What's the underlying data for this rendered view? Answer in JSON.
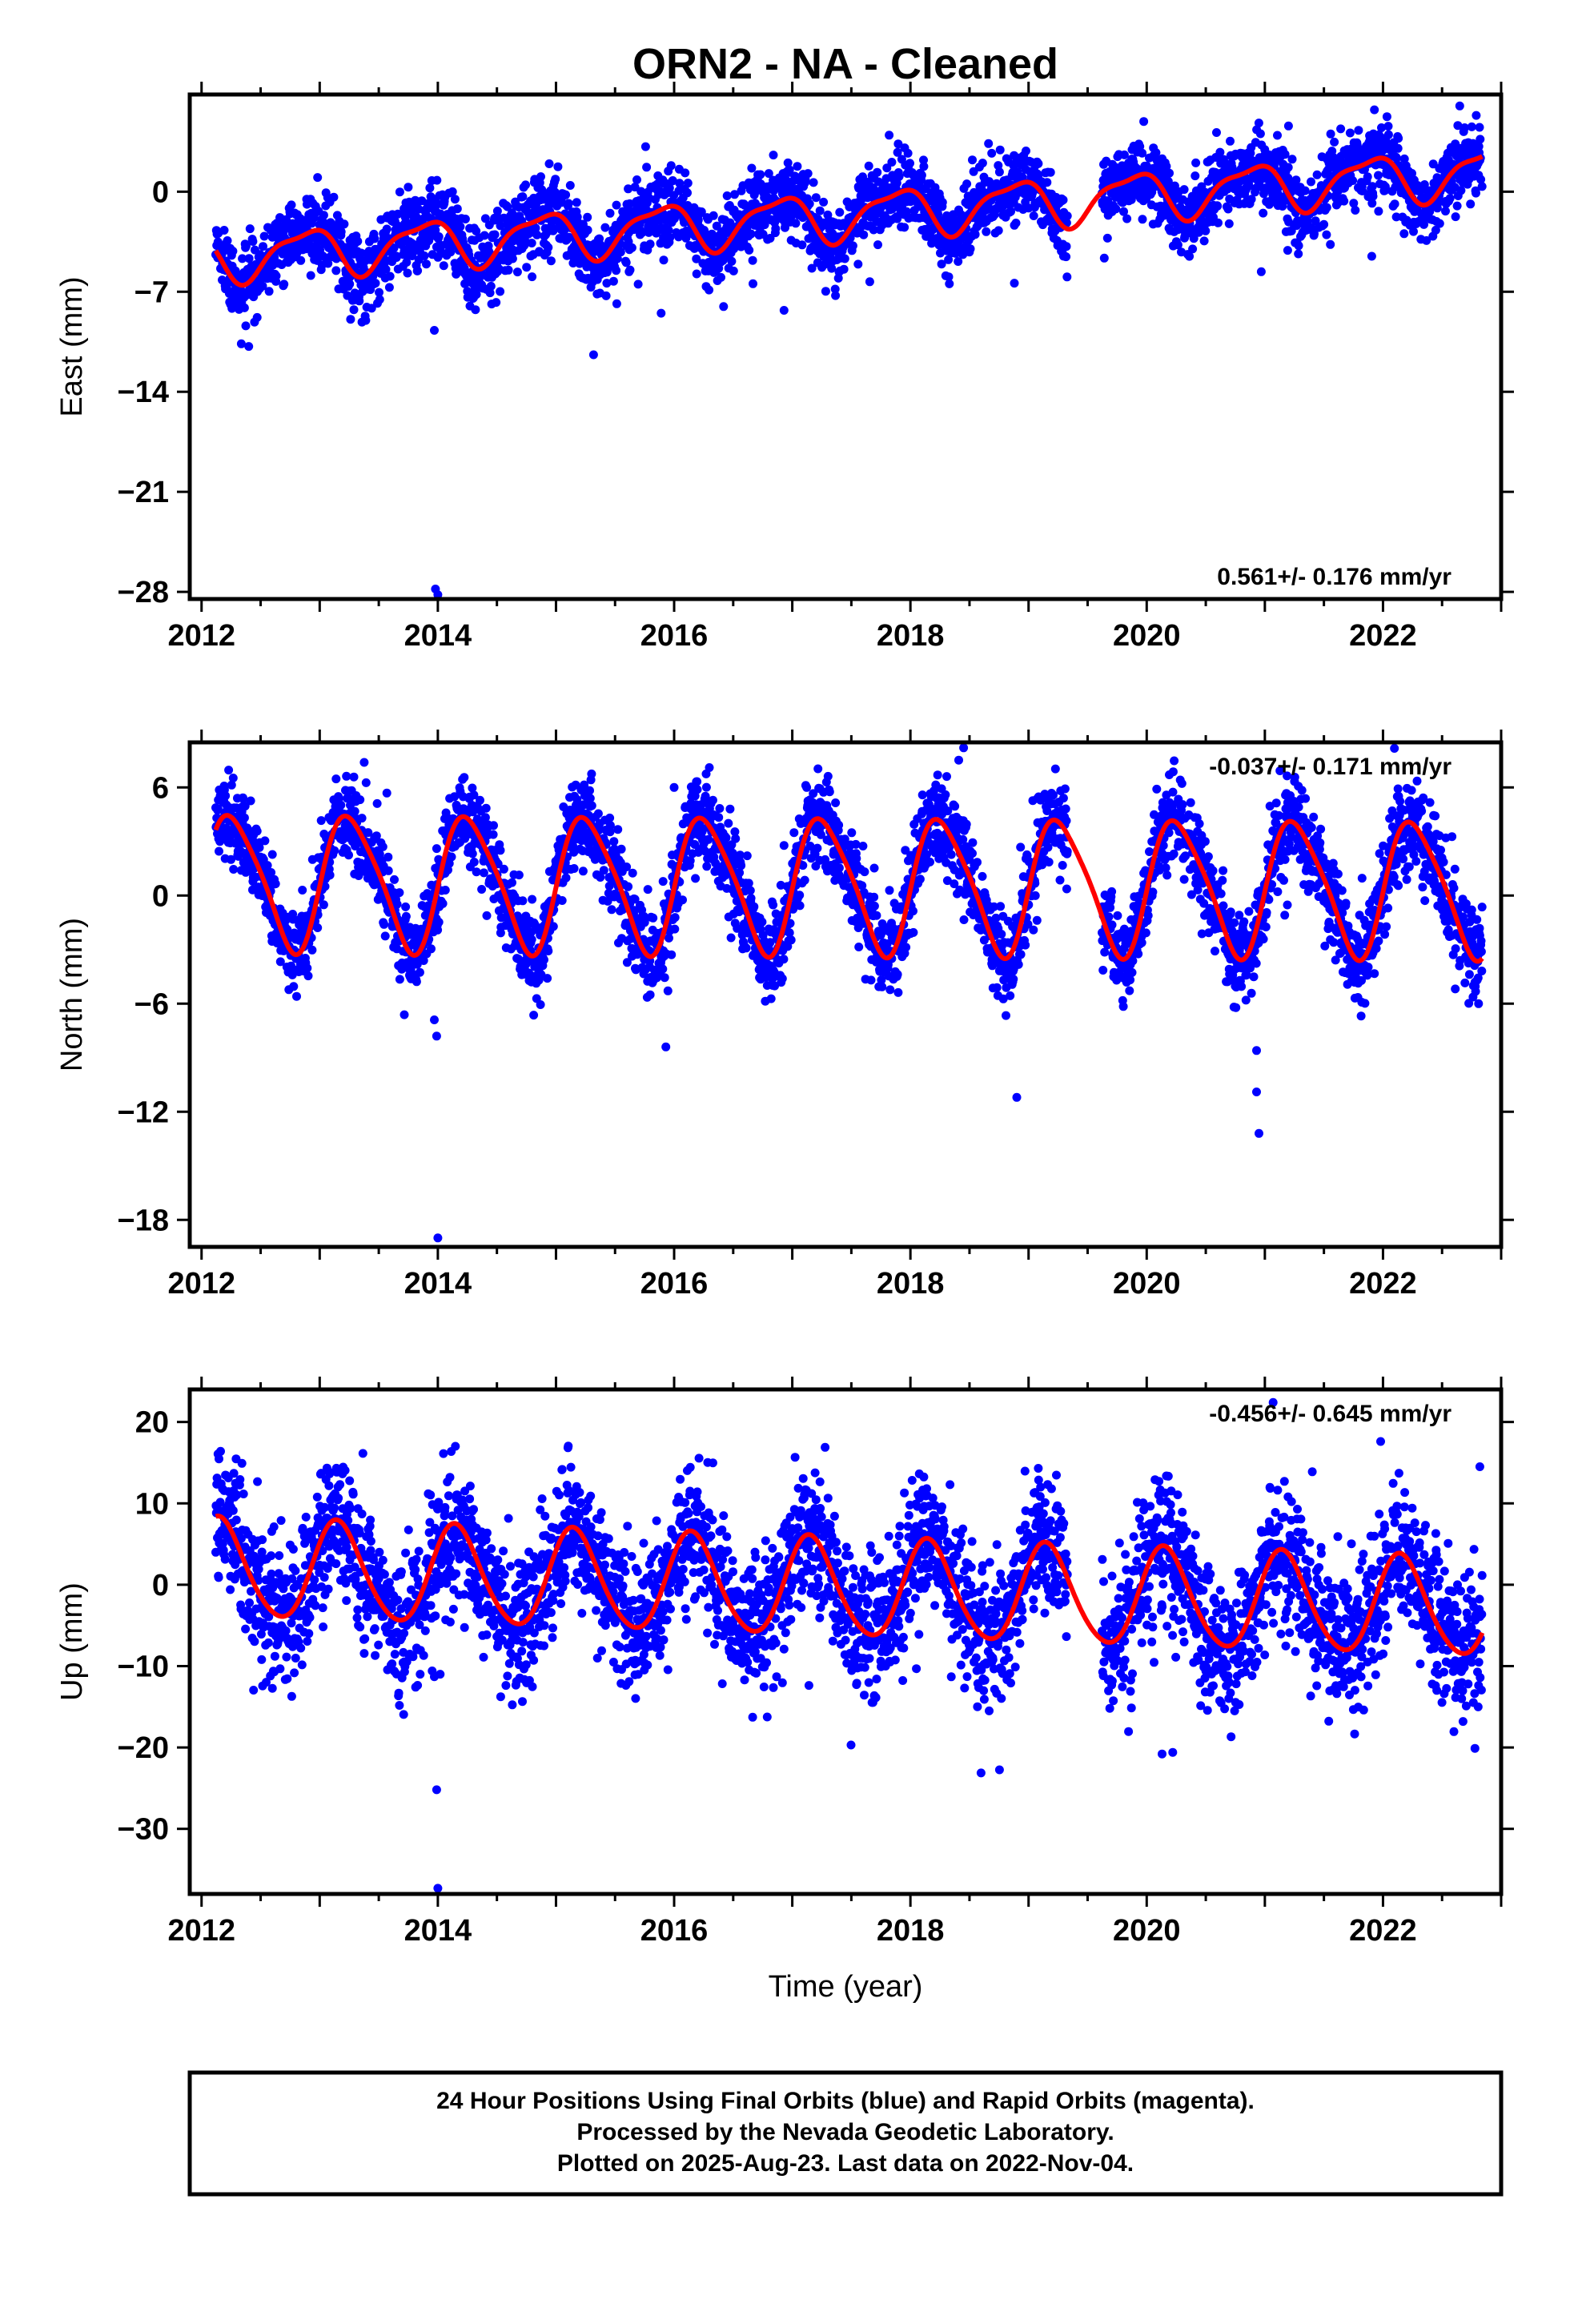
{
  "title": "ORN2  - NA - Cleaned",
  "footer": {
    "lines": [
      "24 Hour Positions Using Final Orbits (blue) and Rapid Orbits (magenta).",
      "Processed by the Nevada Geodetic Laboratory.",
      "Plotted on 2025-Aug-23. Last data on 2022-Nov-04."
    ]
  },
  "colors": {
    "points": "#0000ff",
    "model": "#ff0000",
    "frame": "#000000"
  },
  "chart_data": [
    {
      "type": "scatter",
      "name": "east",
      "ylabel": "East (mm)",
      "xlabel": "",
      "xlim": [
        2011.9,
        2023.0
      ],
      "ylim": [
        -28.5,
        6.8
      ],
      "xticks": [
        2012,
        2014,
        2016,
        2018,
        2020,
        2022
      ],
      "yticks": [
        0,
        -7,
        -14,
        -21,
        -28
      ],
      "rate_label": "0.561+/- 0.176 mm/yr",
      "rate_position": "bottom-right",
      "data_start": 2012.12,
      "data_end": 2022.84,
      "gaps": [
        [
          2019.33,
          2019.62
        ]
      ],
      "model": {
        "offset": -1.6,
        "rate": 0.561,
        "ref_year": 2017.5,
        "annual_amp": 1.6,
        "annual_phase": 2.35,
        "semiannual_amp": 0.5,
        "semiannual_phase": 0.6
      },
      "scatter_sd": 1.25,
      "outliers": [
        [
          2013.97,
          -9.7
        ],
        [
          2013.98,
          -27.8
        ],
        [
          2014.0,
          -28.2
        ],
        [
          2015.89,
          -8.5
        ],
        [
          2016.93,
          -8.3
        ],
        [
          2018.88,
          -6.4
        ],
        [
          2020.97,
          -5.6
        ],
        [
          2021.2,
          4.6
        ]
      ]
    },
    {
      "type": "scatter",
      "name": "north",
      "ylabel": "North (mm)",
      "xlabel": "",
      "xlim": [
        2011.9,
        2023.0
      ],
      "ylim": [
        -19.5,
        8.5
      ],
      "xticks": [
        2012,
        2014,
        2016,
        2018,
        2020,
        2022
      ],
      "yticks": [
        6,
        0,
        -6,
        -12,
        -18
      ],
      "rate_label": "-0.037+/- 0.171 mm/yr",
      "rate_position": "top-right",
      "data_start": 2012.12,
      "data_end": 2022.84,
      "gaps": [
        [
          2019.33,
          2019.62
        ]
      ],
      "model": {
        "offset": 0.6,
        "rate": -0.037,
        "ref_year": 2017.5,
        "annual_amp": 3.7,
        "annual_phase": -0.1,
        "semiannual_amp": 0.6,
        "semiannual_phase": 0.2
      },
      "scatter_sd": 1.2,
      "outliers": [
        [
          2013.97,
          -6.9
        ],
        [
          2013.99,
          -7.8
        ],
        [
          2014.0,
          -19.0
        ],
        [
          2015.93,
          -8.4
        ],
        [
          2016.0,
          6.0
        ],
        [
          2018.9,
          -11.2
        ],
        [
          2018.45,
          8.2
        ],
        [
          2020.93,
          -8.6
        ],
        [
          2020.93,
          -10.9
        ],
        [
          2020.95,
          -13.2
        ]
      ]
    },
    {
      "type": "scatter",
      "name": "up",
      "ylabel": "Up (mm)",
      "xlabel": "Time (year)",
      "xlim": [
        2011.9,
        2023.0
      ],
      "ylim": [
        -38.0,
        24.0
      ],
      "xticks": [
        2012,
        2014,
        2016,
        2018,
        2020,
        2022
      ],
      "yticks": [
        20,
        10,
        0,
        -10,
        -20,
        -30
      ],
      "rate_label": "-0.456+/- 0.645 mm/yr",
      "rate_position": "top-right",
      "data_start": 2012.12,
      "data_end": 2022.84,
      "gaps": [
        [
          2019.33,
          2019.62
        ]
      ],
      "model": {
        "offset": -0.5,
        "rate": -0.456,
        "ref_year": 2017.5,
        "annual_amp": 6.0,
        "annual_phase": 0.6,
        "semiannual_amp": 0.6,
        "semiannual_phase": 0.3
      },
      "scatter_sd": 4.2,
      "outliers": [
        [
          2013.97,
          -11.3
        ],
        [
          2014.02,
          -11.0
        ],
        [
          2013.99,
          -25.2
        ],
        [
          2014.0,
          -37.3
        ],
        [
          2020.13,
          -20.8
        ],
        [
          2020.22,
          -20.6
        ],
        [
          2021.07,
          22.4
        ],
        [
          2021.98,
          17.6
        ],
        [
          2022.82,
          14.5
        ]
      ]
    }
  ]
}
